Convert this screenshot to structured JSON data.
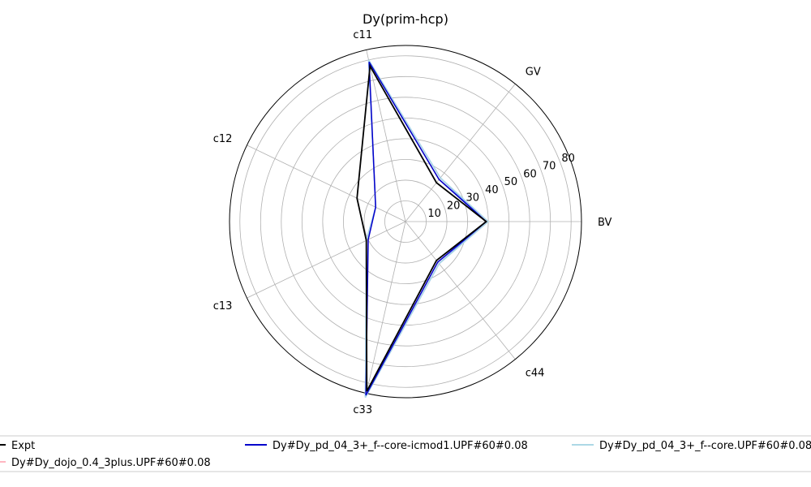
{
  "chart_data": {
    "type": "radar",
    "title": "Dy(prim-hcp)",
    "axes": [
      "BV",
      "GV",
      "c11",
      "c12",
      "c13",
      "c33",
      "c44"
    ],
    "r_ticks": [
      10,
      20,
      30,
      40,
      50,
      60,
      70,
      80
    ],
    "rlim": [
      0,
      85
    ],
    "grid": true,
    "legend_position": "bottom",
    "series": [
      {
        "name": "Expt",
        "color": "#000000",
        "values": [
          39,
          24,
          77,
          26,
          21,
          84,
          24
        ]
      },
      {
        "name": "Dy#Dy_pd_04_3+_f--core-icmod1.UPF#60#0.08",
        "color": "#0000cc",
        "values": [
          39,
          26,
          79,
          16,
          20,
          86,
          25
        ]
      },
      {
        "name": "Dy#Dy_pd_04_3+_f--core.UPF#60#0.08",
        "color": "#add8e6",
        "values": [
          40,
          27,
          80,
          16,
          21,
          87,
          26
        ]
      },
      {
        "name": "Dy#Dy_dojo_0.4_3plus.UPF#60#0.08",
        "color": "#ffb6c1",
        "values": [
          39,
          26,
          79,
          16,
          20,
          86,
          25
        ]
      },
      {
        "name": "",
        "color": "#5b8ff9",
        "values": [
          39,
          27,
          80,
          16,
          21,
          87,
          26
        ]
      }
    ]
  }
}
